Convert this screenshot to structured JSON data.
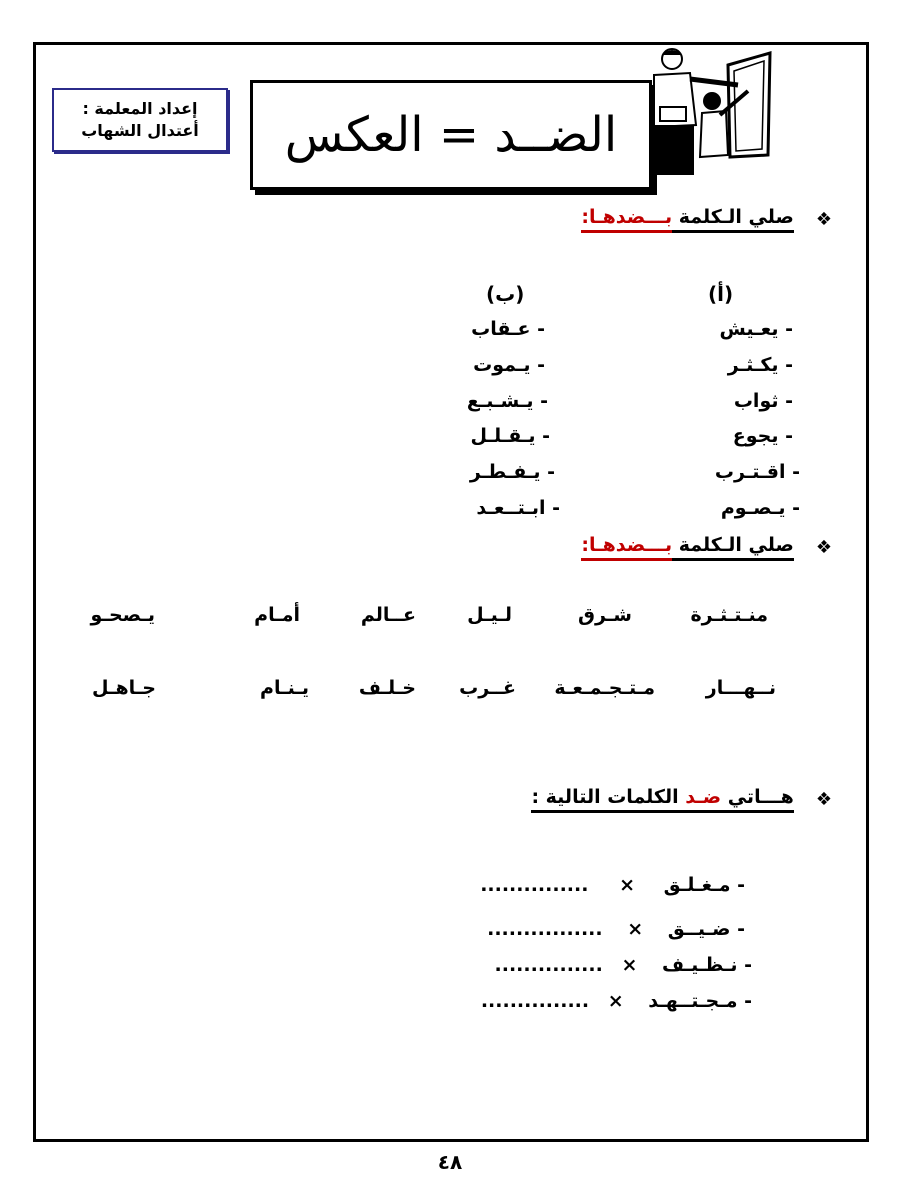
{
  "header": {
    "prepared_by_label": "إعداد المعلمة :",
    "teacher_name": "أعتدال الشهاب",
    "title": "الضــد = العكس"
  },
  "section1": {
    "heading_main": "صلي الـكلمة ",
    "heading_red": "بـــضدهـا:",
    "col_a_label": "(أ)",
    "col_b_label": "(ب)",
    "col_a": [
      "- يعـيش",
      "- يكـثـر",
      "-  ثواب",
      "- يجوع",
      "- اقـتـرب",
      "- يـصـوم"
    ],
    "col_b": [
      "- عـقاب",
      "- يـموت",
      "- يـشـبـع",
      "-  يـقـلـل",
      "-  يـفـطـر",
      "- ابـتــعـد"
    ]
  },
  "section2": {
    "heading_main": "صلي الـكلمة ",
    "heading_red": "بـــضدهـا:",
    "row1": [
      "منـتـثـرة",
      "شـرق",
      "لـيـل",
      "عــالم",
      "أمـام",
      "يـصحـو"
    ],
    "row2": [
      "نــهـــار",
      "مـتـجـمـعـة",
      "غــرب",
      "خـلـف",
      "يـنـام",
      "جـاهـل"
    ]
  },
  "section3": {
    "heading_pre": "هـــاتي ",
    "heading_red": "ضـد",
    "heading_post": " الكلمات التالية :",
    "items": [
      {
        "word": "- مـغـلـق",
        "sep": "×",
        "blank": "..............."
      },
      {
        "word": "- ضـيــق",
        "sep": "×",
        "blank": "................"
      },
      {
        "word": "- نـظـيـف",
        "sep": "×",
        "blank": "..............."
      },
      {
        "word": "- مـجـتــهـد",
        "sep": "×",
        "blank": "..............."
      }
    ]
  },
  "page_number": "٤٨",
  "colors": {
    "accent_red": "#c00000",
    "box_border": "#2b2b8a"
  }
}
